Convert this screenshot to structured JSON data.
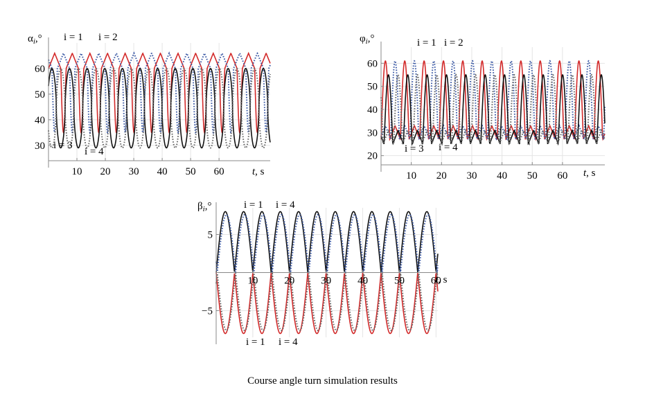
{
  "caption": "Course angle turn simulation results",
  "chart_data": [
    {
      "type": "line",
      "ylabel": "α",
      "ylabel_sub": "i",
      "ylabel_unit": ",°",
      "xlabel": "t",
      "xlabel_unit": ", s",
      "x_ticks": [
        10,
        20,
        30,
        40,
        50,
        60
      ],
      "y_ticks": [
        30,
        40,
        50,
        60
      ],
      "xlim": [
        0,
        78
      ],
      "ylim": [
        24,
        70
      ],
      "grid": true,
      "annotations": [
        "i = 1",
        "i = 2",
        "i = 3",
        "i = 4"
      ],
      "period": 6.2,
      "series": [
        {
          "label": "i = 1",
          "color": "#d32a2a",
          "style": "solid",
          "kind": "saw_high",
          "min": 35,
          "max": 66,
          "phase": 0.0
        },
        {
          "label": "i = 2",
          "color": "#3b59a5",
          "style": "dotted",
          "kind": "saw_high",
          "min": 35,
          "max": 66,
          "phase": 3.1
        },
        {
          "label": "i = 3",
          "color": "#111111",
          "style": "solid",
          "kind": "cos",
          "min": 29,
          "max": 60,
          "phase": 1.2
        },
        {
          "label": "i = 4",
          "color": "#666666",
          "style": "dotted",
          "kind": "cos",
          "min": 29,
          "max": 60,
          "phase": 4.3
        }
      ]
    },
    {
      "type": "line",
      "ylabel": "φ",
      "ylabel_sub": "i",
      "ylabel_unit": ",°",
      "xlabel": "t",
      "xlabel_unit": ", s",
      "x_ticks": [
        10,
        20,
        30,
        40,
        50,
        60
      ],
      "y_ticks": [
        20,
        30,
        40,
        50,
        60
      ],
      "xlim": [
        0,
        74
      ],
      "ylim": [
        16,
        67
      ],
      "grid": true,
      "annotations": [
        "i = 1",
        "i = 2",
        "i = 3",
        "i = 4"
      ],
      "period": 6.4,
      "series": [
        {
          "label": "i = 1",
          "color": "#d32a2a",
          "style": "solid",
          "kind": "peak_saw",
          "min": 27,
          "max": 61,
          "phase": 0.0
        },
        {
          "label": "i = 2",
          "color": "#3b59a5",
          "style": "dotted",
          "kind": "peak_saw",
          "min": 27,
          "max": 61,
          "phase": 3.2
        },
        {
          "label": "i = 3",
          "color": "#111111",
          "style": "solid",
          "kind": "peak_saw",
          "min": 25,
          "max": 55,
          "phase": 1.0
        },
        {
          "label": "i = 4",
          "color": "#666666",
          "style": "dotted",
          "kind": "peak_saw",
          "min": 25,
          "max": 55,
          "phase": 4.2
        }
      ]
    },
    {
      "type": "line",
      "ylabel": "β",
      "ylabel_sub": "i",
      "ylabel_unit": ",°",
      "xlabel": "t",
      "xlabel_unit": ", s",
      "x_ticks": [
        10,
        20,
        30,
        40,
        50,
        60
      ],
      "y_ticks": [
        5,
        -5
      ],
      "y_tick_labels": [
        "5",
        "−5"
      ],
      "xlim": [
        0,
        60.5
      ],
      "ylim": [
        -8.5,
        8.5
      ],
      "grid": true,
      "annotations_top": [
        "i = 1",
        "i = 4"
      ],
      "annotations_bottom": [
        "i = 1",
        "i = 4"
      ],
      "period": 5.0,
      "series": [
        {
          "label": "i = 1",
          "color": "#111111",
          "style": "solid",
          "kind": "abs_sin",
          "amplitude": 8.0,
          "phase": 0.0
        },
        {
          "label": "i = 4",
          "color": "#3b59a5",
          "style": "dotted",
          "kind": "abs_sin",
          "amplitude": 7.6,
          "phase": 0.3
        },
        {
          "label": "i = 1",
          "color": "#d32a2a",
          "style": "solid",
          "kind": "neg_abs_sin",
          "amplitude": 8.0,
          "phase": 0.0
        },
        {
          "label": "i = 4",
          "color": "#666666",
          "style": "dotted",
          "kind": "neg_abs_sin",
          "amplitude": 7.6,
          "phase": 0.3
        }
      ]
    }
  ]
}
